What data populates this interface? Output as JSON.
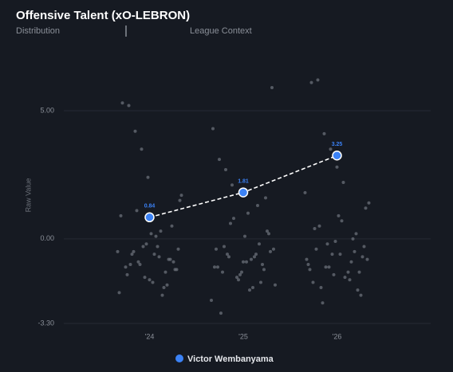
{
  "tabs": [
    "Distribution",
    "League Context"
  ],
  "chart_data": {
    "type": "scatter",
    "title": "Offensive Talent (xO-LEBRON)",
    "y_label": "Raw Value",
    "categories": [
      "'24",
      "'25",
      "'26"
    ],
    "ylim": [
      -3.3,
      6.5
    ],
    "yticks": [
      {
        "value": -3.3,
        "label": "-3.30"
      },
      {
        "value": 0,
        "label": "0.00"
      },
      {
        "value": 5,
        "label": "5.00"
      }
    ],
    "grid": true,
    "distribution": {
      "color": "#6b7079",
      "values": [
        [
          -0.5,
          -1.2,
          -0.8,
          -1.9,
          -0.3,
          0.2,
          -1.5,
          -0.9,
          -0.6,
          -1.1,
          -2.1,
          -0.4,
          0.5,
          -1.3,
          -0.7,
          -1.7,
          -0.2,
          -1.0,
          -0.5,
          -1.4,
          0.9,
          1.5,
          -0.9,
          -1.8,
          0.3,
          -0.6,
          2.4,
          3.5,
          4.2,
          5.2,
          5.3,
          1.7,
          -1.2,
          -0.8,
          -2.2,
          0.1,
          -1.6,
          -0.3,
          1.1,
          -1.0
        ],
        [
          -0.7,
          -1.3,
          -0.4,
          -1.8,
          0.2,
          -1.0,
          -0.6,
          -2.0,
          -0.9,
          -1.5,
          0.6,
          -0.3,
          -1.1,
          -2.4,
          -0.5,
          -1.2,
          1.3,
          -0.8,
          0.1,
          -1.6,
          2.1,
          2.7,
          3.1,
          4.3,
          5.9,
          1.6,
          -0.2,
          -1.9,
          -0.9,
          -1.4,
          0.8,
          -0.6,
          -2.9,
          -1.1,
          -0.4,
          0.3,
          -1.7,
          -0.7,
          1.0,
          -1.3
        ],
        [
          -0.6,
          -1.4,
          -0.2,
          -1.9,
          0.4,
          -1.0,
          -0.8,
          -2.2,
          -0.5,
          -1.3,
          0.7,
          -0.1,
          -1.1,
          -2.5,
          -0.4,
          -1.2,
          1.4,
          -0.7,
          0.2,
          -1.6,
          2.2,
          2.8,
          3.5,
          4.1,
          6.2,
          6.1,
          1.8,
          -0.3,
          -2.0,
          -0.9,
          -1.5,
          0.9,
          -0.6,
          -1.1,
          0.5,
          -1.7,
          -0.8,
          1.2,
          -1.3,
          0.0
        ]
      ]
    },
    "series": [
      {
        "name": "Victor Wembanyama",
        "color": "#3b82f6",
        "values": [
          0.84,
          1.81,
          3.25
        ]
      }
    ]
  }
}
